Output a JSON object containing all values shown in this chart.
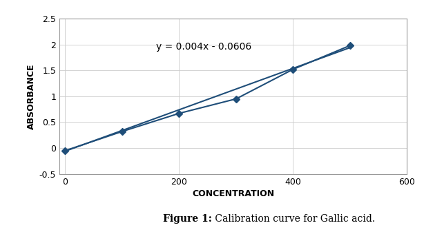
{
  "scatter_x": [
    0,
    100,
    200,
    300,
    400,
    500
  ],
  "scatter_y": [
    -0.05,
    0.32,
    0.67,
    0.95,
    1.52,
    1.98
  ],
  "trend_slope": 0.004,
  "trend_intercept": -0.0606,
  "trend_x": [
    0,
    500
  ],
  "equation_text": "y = 0.004x - 0.0606",
  "equation_x": 160,
  "equation_y": 1.9,
  "xlabel": "CONCENTRATION",
  "ylabel": "ABSORBANCE",
  "xlim": [
    -10,
    600
  ],
  "ylim": [
    -0.5,
    2.5
  ],
  "xticks": [
    0,
    200,
    400,
    600
  ],
  "yticks": [
    -0.5,
    0.0,
    0.5,
    1.0,
    1.5,
    2.0,
    2.5
  ],
  "caption_bold": "Figure 1:",
  "caption_normal": " Calibration curve for Gallic acid.",
  "line_color": "#1F4E79",
  "marker_color": "#1F4E79",
  "bg_color": "#FFFFFF",
  "grid_color": "#CCCCCC",
  "figsize": [
    6.14,
    3.37
  ],
  "dpi": 100
}
